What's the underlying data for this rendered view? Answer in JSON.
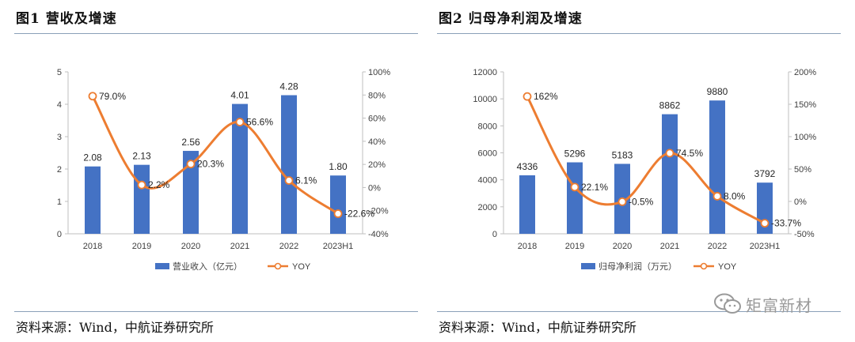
{
  "charts": [
    {
      "figure_title": "图1  营收及增速",
      "source": "资料来源：Wind，中航证券研究所",
      "chart_data": {
        "type": "bar",
        "title": "营收及增速",
        "categories": [
          "2018",
          "2019",
          "2020",
          "2021",
          "2022",
          "2023H1"
        ],
        "series": [
          {
            "name": "营业收入（亿元）",
            "type": "bar",
            "axis": "left",
            "values": [
              2.08,
              2.13,
              2.56,
              4.01,
              4.28,
              1.8
            ],
            "labels": [
              "2.08",
              "2.13",
              "2.56",
              "4.01",
              "4.28",
              "1.80"
            ]
          },
          {
            "name": "YOY",
            "type": "line",
            "axis": "right",
            "values": [
              79.0,
              2.2,
              20.3,
              56.6,
              6.1,
              -22.6
            ],
            "labels": [
              "79.0%",
              "2.2%",
              "20.3%",
              "56.6%",
              "6.1%",
              "-22.6%"
            ]
          }
        ],
        "left_axis": {
          "min": 0,
          "max": 5,
          "ticks": [
            "0",
            "1",
            "2",
            "3",
            "4",
            "5"
          ]
        },
        "right_axis": {
          "min": -40,
          "max": 100,
          "ticks": [
            "-40%",
            "-20%",
            "0%",
            "20%",
            "40%",
            "60%",
            "80%",
            "100%"
          ]
        },
        "legend": {
          "position": "bottom",
          "bar_label": "营业收入（亿元）",
          "line_label": "YOY"
        },
        "colors": {
          "bar": "#4472c4",
          "line": "#ed7d31",
          "axis": "#bfbfbf"
        }
      }
    },
    {
      "figure_title": "图2  归母净利润及增速",
      "source": "资料来源：Wind，中航证券研究所",
      "chart_data": {
        "type": "bar",
        "title": "归母净利润及增速",
        "categories": [
          "2018",
          "2019",
          "2020",
          "2021",
          "2022",
          "2023H1"
        ],
        "series": [
          {
            "name": "归母净利润（万元）",
            "type": "bar",
            "axis": "left",
            "values": [
              4336,
              5296,
              5183,
              8862,
              9880,
              3792
            ],
            "labels": [
              "4336",
              "5296",
              "5183",
              "8862",
              "9880",
              "3792"
            ]
          },
          {
            "name": "YOY",
            "type": "line",
            "axis": "right",
            "values": [
              162,
              22.1,
              -0.5,
              74.5,
              8.0,
              -33.7
            ],
            "labels": [
              "162%",
              "22.1%",
              "-0.5%",
              "74.5%",
              "8.0%",
              "-33.7%"
            ]
          }
        ],
        "left_axis": {
          "min": 0,
          "max": 12000,
          "ticks": [
            "0",
            "2000",
            "4000",
            "6000",
            "8000",
            "10000",
            "12000"
          ]
        },
        "right_axis": {
          "min": -50,
          "max": 200,
          "ticks": [
            "-50%",
            "0%",
            "50%",
            "100%",
            "150%",
            "200%"
          ]
        },
        "legend": {
          "position": "bottom",
          "bar_label": "归母净利润（万元）",
          "line_label": "YOY"
        },
        "colors": {
          "bar": "#4472c4",
          "line": "#ed7d31",
          "axis": "#bfbfbf"
        }
      }
    }
  ],
  "watermark": {
    "text": "矩富新材"
  }
}
